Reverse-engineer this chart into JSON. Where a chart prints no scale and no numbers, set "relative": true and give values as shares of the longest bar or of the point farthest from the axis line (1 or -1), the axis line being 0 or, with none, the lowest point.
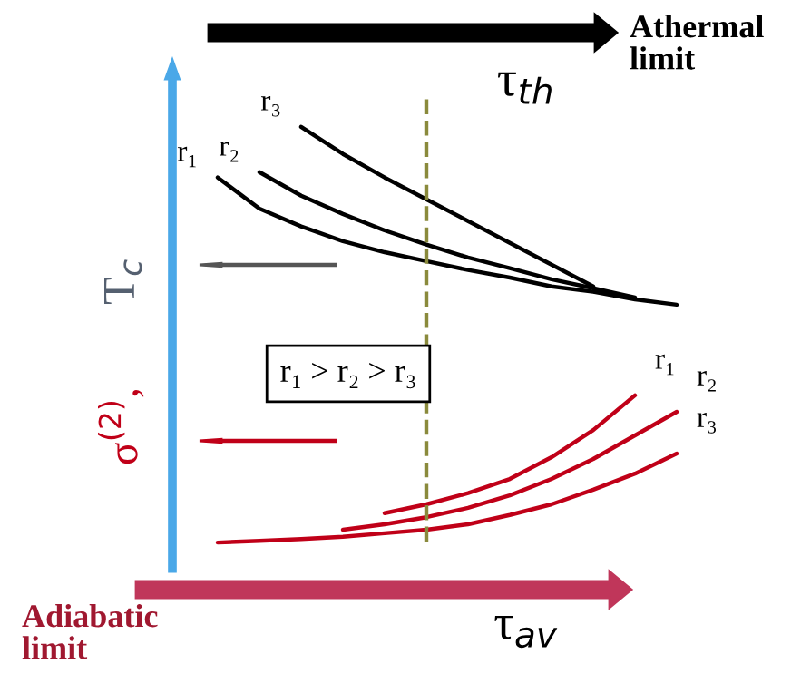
{
  "chart_data": {
    "type": "line",
    "relative": true,
    "xlabel": "τ$_{av}$",
    "categories": [
      null,
      null,
      null,
      null,
      null,
      null,
      null,
      null,
      null,
      null,
      null,
      null
    ],
    "series": [
      {
        "name": "r₃",
        "color": "#000000",
        "values": [
          null,
          null,
          1.0,
          0.939,
          0.886,
          0.837,
          0.788,
          0.739,
          0.69,
          0.641,
          null,
          null
        ]
      },
      {
        "name": "r₂",
        "color": "#000000",
        "values": [
          null,
          0.898,
          0.845,
          0.804,
          0.767,
          0.735,
          0.706,
          0.682,
          0.657,
          0.637,
          0.616,
          null
        ]
      },
      {
        "name": "r₁",
        "color": "#000000",
        "values": [
          0.886,
          0.816,
          0.776,
          0.743,
          0.718,
          0.698,
          0.678,
          0.661,
          0.641,
          0.629,
          0.612,
          0.6
        ]
      },
      {
        "name": "r₁",
        "color": "#c00018",
        "values": [
          null,
          null,
          null,
          null,
          0.131,
          0.151,
          0.176,
          0.208,
          0.257,
          0.318,
          0.396,
          null
        ]
      },
      {
        "name": "r₂",
        "color": "#c00018",
        "values": [
          null,
          null,
          null,
          0.094,
          0.106,
          0.122,
          0.143,
          0.171,
          0.208,
          0.253,
          0.306,
          0.359
        ]
      },
      {
        "name": "r₃",
        "color": "#c00018",
        "values": [
          0.065,
          0.069,
          0.073,
          0.078,
          0.086,
          0.094,
          0.106,
          0.127,
          0.151,
          0.184,
          0.22,
          0.265
        ]
      }
    ],
    "annotations": [
      "T$_{c}$",
      "σ$^{(2)}$,",
      "r₁ > r₂ > r₃",
      "Adiabatic\nlimit",
      "Athermal\nlimit",
      "τ$_{th}$"
    ],
    "grid": false,
    "legend": false,
    "marker": "none",
    "line_style": "solid"
  }
}
